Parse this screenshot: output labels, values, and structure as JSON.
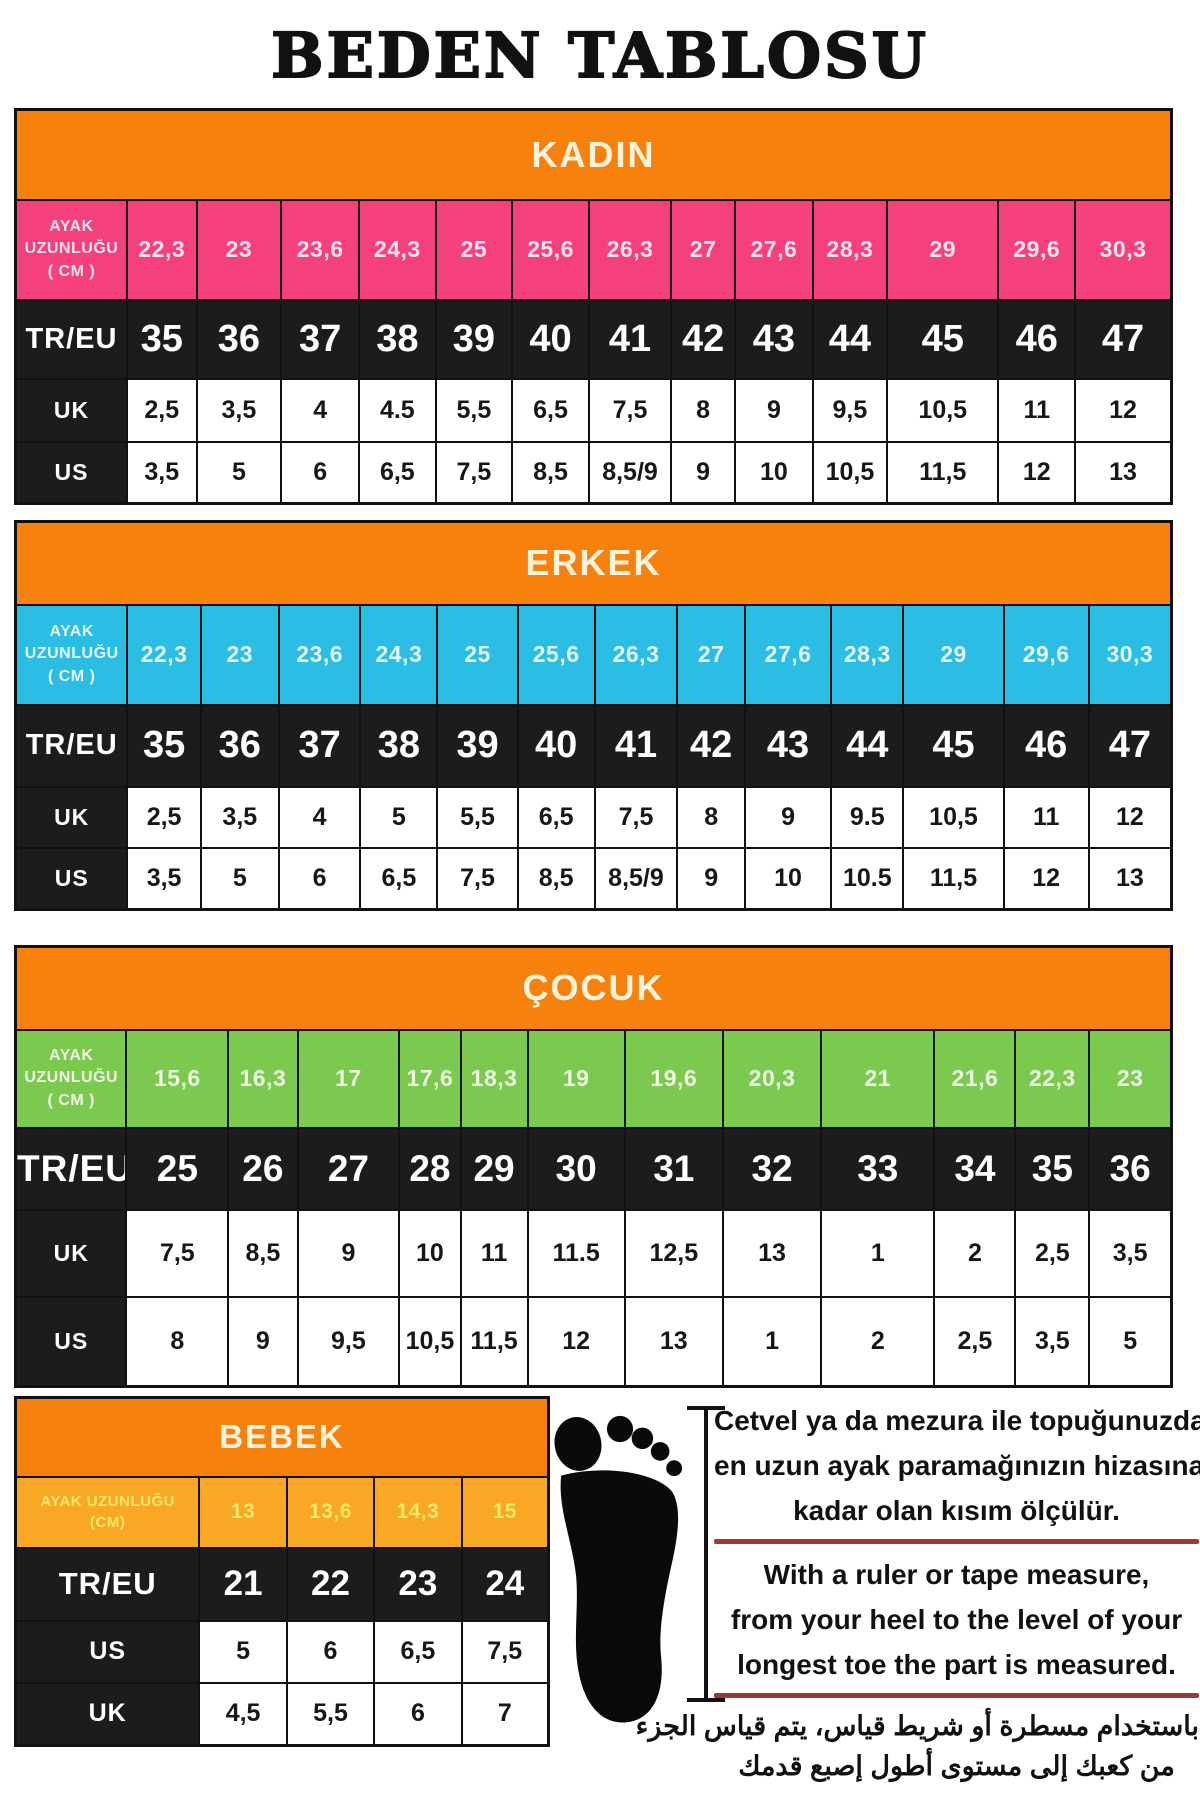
{
  "title": "BEDEN TABLOSU",
  "colors": {
    "orange": "#F6820D",
    "header_text": "#FCF3DC",
    "dark_cell": "#1E1B1C",
    "border": "#131013",
    "rule_red": "#993B33",
    "kadin_pink": "#F4417B",
    "erkek_cyan": "#2BBDE4",
    "cocuk_green": "#7CC94F",
    "bebek_amber": "#F9A825",
    "bebek_foot_text": "#FFE869"
  },
  "tables": [
    {
      "id": "kadin",
      "header": "KADIN",
      "foot_label_lines": [
        "AYAK",
        "UZUNLUĞU",
        "( CM )"
      ],
      "foot_bg": "#F4417B",
      "foot_text": "#FCE3EC",
      "foot_lengths": [
        "22,3",
        "23",
        "23,6",
        "24,3",
        "25",
        "25,6",
        "26,3",
        "27",
        "27,6",
        "28,3",
        "29",
        "29,6",
        "30,3"
      ],
      "rows": [
        {
          "label": "TR/EU",
          "style": "dark",
          "values": [
            "35",
            "36",
            "37",
            "38",
            "39",
            "40",
            "41",
            "42",
            "43",
            "44",
            "45",
            "46",
            "47"
          ]
        },
        {
          "label": "UK",
          "style": "light",
          "values": [
            "2,5",
            "3,5",
            "4",
            "4.5",
            "5,5",
            "6,5",
            "7,5",
            "8",
            "9",
            "9,5",
            "10,5",
            "11",
            "12"
          ]
        },
        {
          "label": "US",
          "style": "light",
          "values": [
            "3,5",
            "5",
            "6",
            "6,5",
            "7,5",
            "8,5",
            "8,5/9",
            "9",
            "10",
            "10,5",
            "11,5",
            "12",
            "13"
          ]
        }
      ]
    },
    {
      "id": "erkek",
      "header": "ERKEK",
      "foot_label_lines": [
        "AYAK",
        "UZUNLUĞU",
        "( CM )"
      ],
      "foot_bg": "#2BBDE4",
      "foot_text": "#E3F8FE",
      "foot_lengths": [
        "22,3",
        "23",
        "23,6",
        "24,3",
        "25",
        "25,6",
        "26,3",
        "27",
        "27,6",
        "28,3",
        "29",
        "29,6",
        "30,3"
      ],
      "rows": [
        {
          "label": "TR/EU",
          "style": "dark",
          "values": [
            "35",
            "36",
            "37",
            "38",
            "39",
            "40",
            "41",
            "42",
            "43",
            "44",
            "45",
            "46",
            "47"
          ]
        },
        {
          "label": "UK",
          "style": "light",
          "values": [
            "2,5",
            "3,5",
            "4",
            "5",
            "5,5",
            "6,5",
            "7,5",
            "8",
            "9",
            "9.5",
            "10,5",
            "11",
            "12"
          ]
        },
        {
          "label": "US",
          "style": "light",
          "values": [
            "3,5",
            "5",
            "6",
            "6,5",
            "7,5",
            "8,5",
            "8,5/9",
            "9",
            "10",
            "10.5",
            "11,5",
            "12",
            "13"
          ]
        }
      ]
    },
    {
      "id": "cocuk",
      "header": "ÇOCUK",
      "foot_label_lines": [
        "AYAK",
        "UZUNLUĞU",
        "( CM )"
      ],
      "foot_bg": "#7CC94F",
      "foot_text": "#EFF9E4",
      "foot_lengths": [
        "15,6",
        "16,3",
        "17",
        "17,6",
        "18,3",
        "19",
        "19,6",
        "20,3",
        "21",
        "21,6",
        "22,3",
        "23"
      ],
      "rows": [
        {
          "label": "TR/EU",
          "style": "dark",
          "values": [
            "25",
            "26",
            "27",
            "28",
            "29",
            "30",
            "31",
            "32",
            "33",
            "34",
            "35",
            "36"
          ]
        },
        {
          "label": "UK",
          "style": "light",
          "values": [
            "7,5",
            "8,5",
            "9",
            "10",
            "11",
            "11.5",
            "12,5",
            "13",
            "1",
            "2",
            "2,5",
            "3,5"
          ]
        },
        {
          "label": "US",
          "style": "light",
          "values": [
            "8",
            "9",
            "9,5",
            "10,5",
            "11,5",
            "12",
            "13",
            "1",
            "2",
            "2,5",
            "3,5",
            "5"
          ]
        }
      ]
    },
    {
      "id": "bebek",
      "header": "BEBEK",
      "foot_label_lines": [
        "AYAK UZUNLUĞU",
        "(CM)"
      ],
      "foot_bg": "#F9A825",
      "foot_text": "#FFE869",
      "foot_lengths": [
        "13",
        "13,6",
        "14,3",
        "15"
      ],
      "rows": [
        {
          "label": "TR/EU",
          "style": "dark",
          "values": [
            "21",
            "22",
            "23",
            "24"
          ]
        },
        {
          "label": "US",
          "style": "light",
          "values": [
            "5",
            "6",
            "6,5",
            "7,5"
          ]
        },
        {
          "label": "UK",
          "style": "light",
          "values": [
            "4,5",
            "5,5",
            "6",
            "7"
          ]
        }
      ]
    }
  ],
  "instructions": {
    "turkish": [
      "Cetvel ya da mezura ile topuğunuzdan,",
      "en uzun ayak paramağınızın hizasına",
      "kadar olan kısım ölçülür."
    ],
    "english": [
      "With a ruler or tape measure,",
      "from your heel to the level of your",
      "longest toe the part is measured."
    ],
    "arabic": [
      "باستخدام مسطرة أو شريط قياس، يتم قياس الجزء",
      "من كعبك إلى مستوى أطول إصبع قدمك"
    ]
  },
  "icons": {
    "foot": "foot-silhouette-icon",
    "measure": "measuring-line-icon"
  }
}
